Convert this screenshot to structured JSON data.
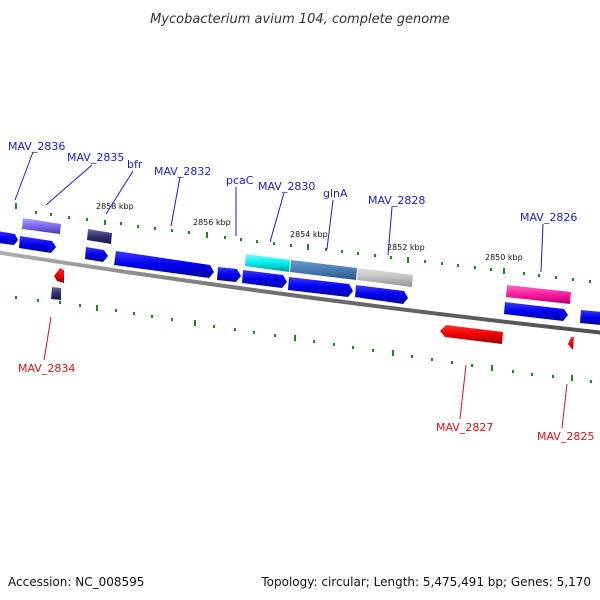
{
  "title": "Mycobacterium avium 104, complete genome",
  "footer": {
    "accession": "Accession: NC_008595",
    "summary": "Topology: circular; Length: 5,475,491 bp; Genes: 5,170"
  },
  "scale_labels": [
    "2858 kbp",
    "2856 kbp",
    "2854 kbp",
    "2852 kbp",
    "2850 kbp"
  ],
  "genes_forward": [
    "MAV_2836",
    "MAV_2835",
    "bfr",
    "MAV_2832",
    "pcaC",
    "MAV_2830",
    "glnA",
    "MAV_2828",
    "MAV_2826"
  ],
  "genes_reverse": [
    "MAV_2834",
    "MAV_2827",
    "MAV_2825"
  ],
  "colors": {
    "forward_label": "#1a1adb",
    "reverse_label": "#e01010",
    "cds": "#0000ee",
    "tick": "#1a8a1a",
    "backbone": "#808080"
  }
}
